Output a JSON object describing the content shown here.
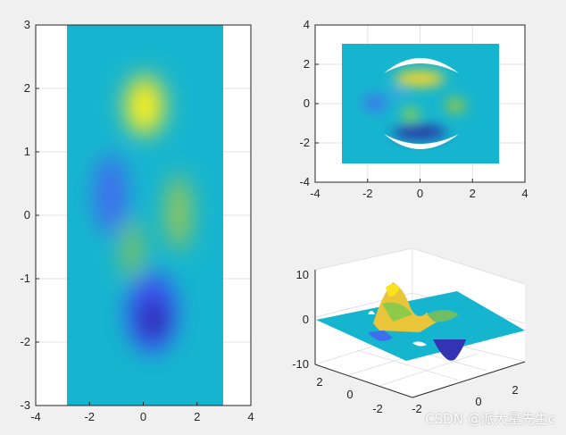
{
  "chart_data": [
    {
      "type": "heatmap",
      "panel": "left",
      "title": "",
      "xlabel": "",
      "ylabel": "",
      "xlim": [
        -4,
        4
      ],
      "ylim": [
        -3,
        3
      ],
      "xticks": [
        "-4",
        "-2",
        "0",
        "2",
        "4"
      ],
      "yticks": [
        "-3",
        "-2",
        "-1",
        "0",
        "1",
        "2",
        "3"
      ],
      "grid": true,
      "data_extent": {
        "x": [
          -3,
          3
        ],
        "y": [
          -3,
          3
        ]
      },
      "colormap": "parula",
      "notable_features": [
        {
          "x": 0.0,
          "y": 1.6,
          "level": "max"
        },
        {
          "x": 0.2,
          "y": -1.6,
          "level": "min"
        },
        {
          "x": -1.5,
          "y": 0.3,
          "level": "low"
        },
        {
          "x": 1.3,
          "y": 0.0,
          "level": "high"
        },
        {
          "x": -0.4,
          "y": -0.6,
          "level": "high"
        }
      ]
    },
    {
      "type": "heatmap",
      "panel": "top-right",
      "title": "",
      "xlabel": "",
      "ylabel": "",
      "xlim": [
        -4,
        4
      ],
      "ylim": [
        -4,
        4
      ],
      "xticks": [
        "-4",
        "-2",
        "0",
        "2",
        "4"
      ],
      "yticks": [
        "-4",
        "-2",
        "0",
        "2",
        "4"
      ],
      "grid": true,
      "data_extent": {
        "x": [
          -3,
          3
        ],
        "y": [
          -3,
          3
        ]
      },
      "colormap": "parula",
      "holes": [
        "top crescent",
        "bottom crescent"
      ]
    },
    {
      "type": "surface",
      "panel": "bottom-right",
      "title": "",
      "xlabel": "",
      "ylabel": "",
      "zlabel": "",
      "zlim": [
        -10,
        10
      ],
      "xticks": [
        "-2",
        "0",
        "2"
      ],
      "yticks": [
        "-2",
        "0",
        "2"
      ],
      "zticks": [
        "-10",
        "0",
        "10"
      ],
      "grid": true,
      "colormap": "parula"
    }
  ],
  "watermark": "CSDN @派大星先生c"
}
